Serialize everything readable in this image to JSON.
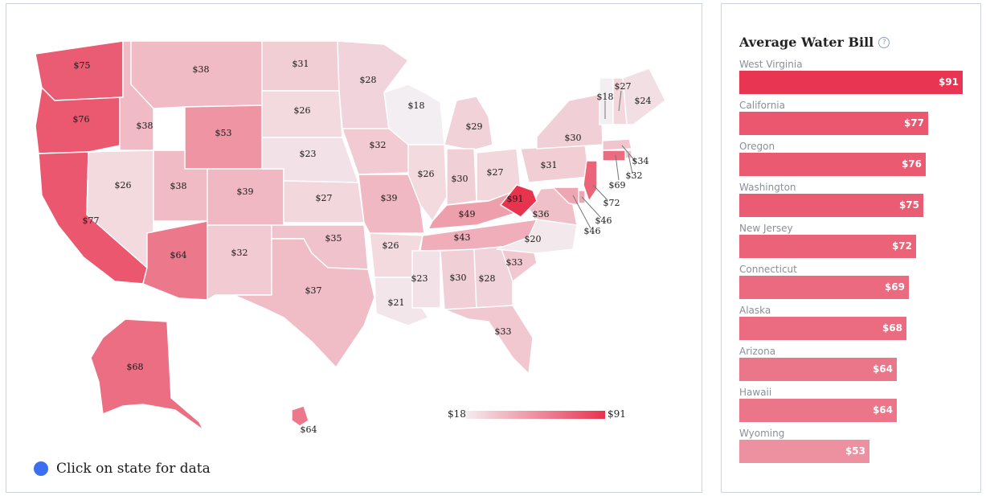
{
  "map": {
    "hint_text": "Click on state for data",
    "legend_min": "$18",
    "legend_max": "$91",
    "states": [
      {
        "name": "WA",
        "value": 75,
        "label": "$75"
      },
      {
        "name": "OR",
        "value": 76,
        "label": "$76"
      },
      {
        "name": "CA",
        "value": 77,
        "label": "$77"
      },
      {
        "name": "ID",
        "value": 38,
        "label": "$38"
      },
      {
        "name": "NV",
        "value": 26,
        "label": "$26"
      },
      {
        "name": "MT",
        "value": 38,
        "label": "$38"
      },
      {
        "name": "WY",
        "value": 53,
        "label": "$53"
      },
      {
        "name": "UT",
        "value": 38,
        "label": "$38"
      },
      {
        "name": "AZ",
        "value": 64,
        "label": "$64"
      },
      {
        "name": "CO",
        "value": 39,
        "label": "$39"
      },
      {
        "name": "NM",
        "value": 32,
        "label": "$32"
      },
      {
        "name": "ND",
        "value": 31,
        "label": "$31"
      },
      {
        "name": "SD",
        "value": 26,
        "label": "$26"
      },
      {
        "name": "NE",
        "value": 23,
        "label": "$23"
      },
      {
        "name": "KS",
        "value": 27,
        "label": "$27"
      },
      {
        "name": "OK",
        "value": 35,
        "label": "$35"
      },
      {
        "name": "TX",
        "value": 37,
        "label": "$37"
      },
      {
        "name": "MN",
        "value": 28,
        "label": "$28"
      },
      {
        "name": "IA",
        "value": 32,
        "label": "$32"
      },
      {
        "name": "MO",
        "value": 39,
        "label": "$39"
      },
      {
        "name": "AR",
        "value": 26,
        "label": "$26"
      },
      {
        "name": "LA",
        "value": 21,
        "label": "$21"
      },
      {
        "name": "WI",
        "value": 18,
        "label": "$18"
      },
      {
        "name": "IL",
        "value": 26,
        "label": "$26"
      },
      {
        "name": "MI",
        "value": 29,
        "label": "$29"
      },
      {
        "name": "IN",
        "value": 30,
        "label": "$30"
      },
      {
        "name": "OH",
        "value": 27,
        "label": "$27"
      },
      {
        "name": "KY",
        "value": 49,
        "label": "$49"
      },
      {
        "name": "TN",
        "value": 43,
        "label": "$43"
      },
      {
        "name": "MS",
        "value": 23,
        "label": "$23"
      },
      {
        "name": "AL",
        "value": 30,
        "label": "$30"
      },
      {
        "name": "GA",
        "value": 28,
        "label": "$28"
      },
      {
        "name": "FL",
        "value": 33,
        "label": "$33"
      },
      {
        "name": "SC",
        "value": 33,
        "label": "$33"
      },
      {
        "name": "NC",
        "value": 20,
        "label": "$20"
      },
      {
        "name": "VA",
        "value": 36,
        "label": "$36"
      },
      {
        "name": "WV",
        "value": 91,
        "label": "$91"
      },
      {
        "name": "PA",
        "value": 31,
        "label": "$31"
      },
      {
        "name": "NY",
        "value": 30,
        "label": "$30"
      },
      {
        "name": "VT",
        "value": 18,
        "label": "$18"
      },
      {
        "name": "NH",
        "value": 27,
        "label": "$27"
      },
      {
        "name": "ME",
        "value": 24,
        "label": "$24"
      },
      {
        "name": "MA",
        "value": 34,
        "label": "$34"
      },
      {
        "name": "RI",
        "value": 32,
        "label": "$32"
      },
      {
        "name": "CT",
        "value": 69,
        "label": "$69"
      },
      {
        "name": "NJ",
        "value": 72,
        "label": "$72"
      },
      {
        "name": "DE",
        "value": 46,
        "label": "$46"
      },
      {
        "name": "MD",
        "value": 46,
        "label": "$46"
      },
      {
        "name": "AK",
        "value": 68,
        "label": "$68"
      },
      {
        "name": "HI",
        "value": 64,
        "label": "$64"
      }
    ]
  },
  "chart_data": {
    "type": "bar",
    "title": "Average Water Bill",
    "categories": [
      "West Virginia",
      "California",
      "Oregon",
      "Washington",
      "New Jersey",
      "Connecticut",
      "Alaska",
      "Arizona",
      "Hawaii",
      "Wyoming"
    ],
    "values": [
      91,
      77,
      76,
      75,
      72,
      69,
      68,
      64,
      64,
      53
    ],
    "value_labels": [
      "$91",
      "$77",
      "$76",
      "$75",
      "$72",
      "$69",
      "$68",
      "$64",
      "$64",
      "$53"
    ]
  },
  "colors": {
    "scale_low": "#f3eef1",
    "scale_high": "#e8334f",
    "hint_dot": "#3c6ef0"
  },
  "icons": {
    "help": "question-circle-icon",
    "hint": "blue-dot-icon"
  },
  "help_glyph": "?"
}
